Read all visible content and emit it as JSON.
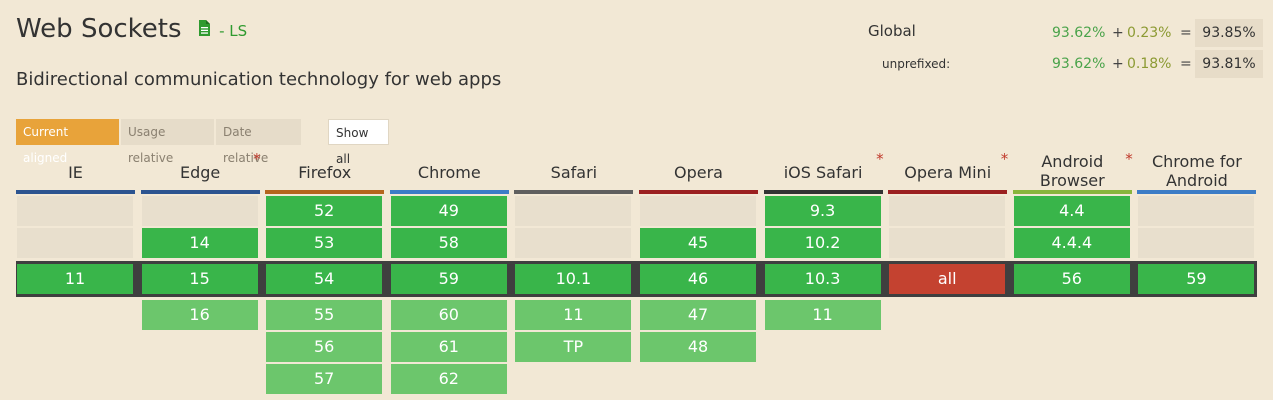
{
  "feature": {
    "title": "Web Sockets",
    "status": "- LS",
    "description": "Bidirectional communication technology for web apps"
  },
  "usage": {
    "global_label": "Global",
    "global_supported": "93.62%",
    "global_partial": "0.23%",
    "global_total": "93.85%",
    "unprefixed_label": "unprefixed:",
    "unprefixed_supported": "93.62%",
    "unprefixed_partial": "0.18%",
    "unprefixed_total": "93.81%",
    "plus": "+",
    "equals": "="
  },
  "view_buttons": {
    "current_aligned": "Current aligned",
    "usage_relative": "Usage relative",
    "date_relative": "Date relative",
    "show_all": "Show all"
  },
  "browsers": [
    {
      "name": "IE",
      "star": "",
      "bar": "#2c5490",
      "before": [
        "",
        ""
      ],
      "current": "11",
      "current_support": "y",
      "after": []
    },
    {
      "name": "Edge",
      "star": "*",
      "bar": "#2c5490",
      "before": [
        "",
        "14"
      ],
      "current": "15",
      "current_support": "y",
      "after": [
        "16"
      ]
    },
    {
      "name": "Firefox",
      "star": "",
      "bar": "#b5651d",
      "before": [
        "52",
        "53"
      ],
      "current": "54",
      "current_support": "y",
      "after": [
        "55",
        "56",
        "57"
      ]
    },
    {
      "name": "Chrome",
      "star": "",
      "bar": "#3c7cc6",
      "before": [
        "49",
        "58"
      ],
      "current": "59",
      "current_support": "y",
      "after": [
        "60",
        "61",
        "62"
      ]
    },
    {
      "name": "Safari",
      "star": "",
      "bar": "#5f5f5f",
      "before": [
        "",
        ""
      ],
      "current": "10.1",
      "current_support": "y",
      "after": [
        "11",
        "TP"
      ]
    },
    {
      "name": "Opera",
      "star": "",
      "bar": "#9b2020",
      "before": [
        "",
        "45"
      ],
      "current": "46",
      "current_support": "y",
      "after": [
        "47",
        "48"
      ]
    },
    {
      "name": "iOS Safari",
      "star": "*",
      "bar": "#333333",
      "before": [
        "9.3",
        "10.2"
      ],
      "current": "10.3",
      "current_support": "y",
      "after": [
        "11"
      ]
    },
    {
      "name": "Opera Mini",
      "star": "*",
      "bar": "#9b2020",
      "before": [
        "",
        ""
      ],
      "current": "all",
      "current_support": "n",
      "after": []
    },
    {
      "name": "Android Browser",
      "star": "*",
      "bar": "#88b53c",
      "before": [
        "4.4",
        "4.4.4"
      ],
      "current": "56",
      "current_support": "y",
      "after": []
    },
    {
      "name": "Chrome for Android",
      "star": "",
      "bar": "#3c7cc6",
      "before": [
        "",
        ""
      ],
      "current": "59",
      "current_support": "y",
      "after": []
    }
  ]
}
